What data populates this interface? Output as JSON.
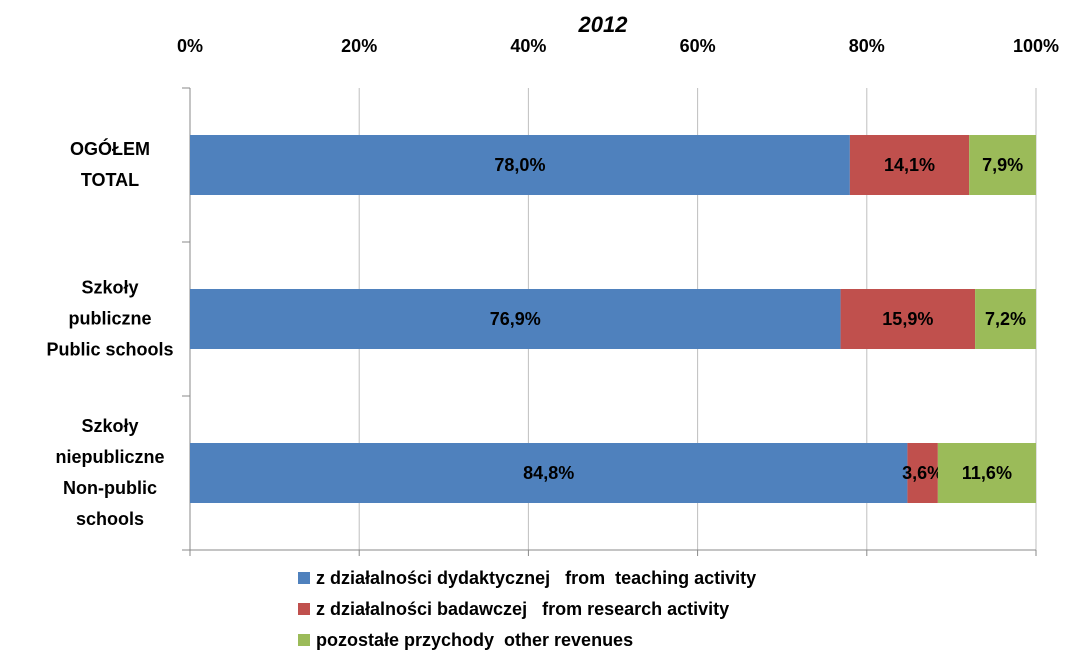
{
  "chart_data": {
    "type": "stacked_bar_horizontal",
    "title": "2012",
    "categories": [
      "OGÓŁEM\nTOTAL",
      "Szkoły\npubliczne\nPublic schools",
      "Szkoły\nniepubliczne\nNon-public\nschools"
    ],
    "series": [
      {
        "name": "z działalności dydaktycznej   from  teaching activity",
        "color": "#4f81bd",
        "values": [
          78.0,
          76.9,
          84.8
        ],
        "value_labels": [
          "78,0%",
          "76,9%",
          "84,8%"
        ]
      },
      {
        "name": "z działalności badawczej   from research activity",
        "color": "#c0504d",
        "values": [
          14.1,
          15.9,
          3.6
        ],
        "value_labels": [
          "14,1%",
          "15,9%",
          "3,6%"
        ]
      },
      {
        "name": "pozostałe przychody  other revenues",
        "color": "#9bbb59",
        "values": [
          7.9,
          7.2,
          11.6
        ],
        "value_labels": [
          "7,9%",
          "7,2%",
          "11,6%"
        ]
      }
    ],
    "xlim": [
      0,
      100
    ],
    "xticks": [
      {
        "value": 0,
        "label": "0%"
      },
      {
        "value": 20,
        "label": "20%"
      },
      {
        "value": 40,
        "label": "40%"
      },
      {
        "value": 60,
        "label": "60%"
      },
      {
        "value": 80,
        "label": "80%"
      },
      {
        "value": 100,
        "label": "100%"
      }
    ],
    "grid": true
  }
}
